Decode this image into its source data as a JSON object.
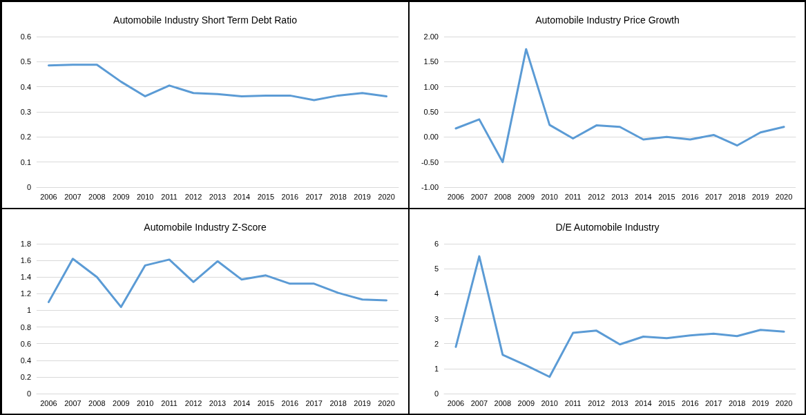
{
  "chart_data": [
    {
      "type": "line",
      "title": "Automobile Industry Short Term Debt Ratio",
      "categories": [
        "2006",
        "2007",
        "2008",
        "2009",
        "2010",
        "2011",
        "2012",
        "2013",
        "2014",
        "2015",
        "2016",
        "2017",
        "2018",
        "2019",
        "2020"
      ],
      "series": [
        {
          "color": "#5b9bd5",
          "values": [
            0.485,
            0.488,
            0.488,
            0.42,
            0.362,
            0.405,
            0.375,
            0.371,
            0.362,
            0.365,
            0.365,
            0.347,
            0.365,
            0.375,
            0.362
          ]
        }
      ],
      "ylim": [
        0,
        0.6
      ],
      "yticks": [
        0,
        0.1,
        0.2,
        0.3,
        0.4,
        0.5,
        0.6
      ],
      "grid": "y",
      "marker": "none",
      "line_style": "solid"
    },
    {
      "type": "line",
      "title": "Automobile Industry Price Growth",
      "categories": [
        "2006",
        "2007",
        "2008",
        "2009",
        "2010",
        "2011",
        "2012",
        "2013",
        "2014",
        "2015",
        "2016",
        "2017",
        "2018",
        "2019",
        "2020"
      ],
      "series": [
        {
          "color": "#5b9bd5",
          "values": [
            0.17,
            0.35,
            -0.5,
            1.75,
            0.24,
            -0.03,
            0.23,
            0.2,
            -0.05,
            0.0,
            -0.05,
            0.04,
            -0.17,
            0.09,
            0.2
          ]
        }
      ],
      "ylim": [
        -1,
        2
      ],
      "yticks": [
        {
          "value": -1,
          "label": "-1.00"
        },
        {
          "value": -0.5,
          "label": "-0.50"
        },
        {
          "value": 0,
          "label": "0.00"
        },
        {
          "value": 0.5,
          "label": "0.50"
        },
        {
          "value": 1,
          "label": "1.00"
        },
        {
          "value": 1.5,
          "label": "1.50"
        },
        {
          "value": 2,
          "label": "2.00"
        }
      ],
      "grid": "y",
      "marker": "none",
      "line_style": "solid"
    },
    {
      "type": "line",
      "title": "Automobile Industry Z-Score",
      "categories": [
        "2006",
        "2007",
        "2008",
        "2009",
        "2010",
        "2011",
        "2012",
        "2013",
        "2014",
        "2015",
        "2016",
        "2017",
        "2018",
        "2019",
        "2020"
      ],
      "series": [
        {
          "color": "#5b9bd5",
          "values": [
            1.1,
            1.62,
            1.4,
            1.04,
            1.54,
            1.61,
            1.34,
            1.59,
            1.37,
            1.42,
            1.32,
            1.32,
            1.21,
            1.13,
            1.12
          ]
        }
      ],
      "ylim": [
        0,
        1.8
      ],
      "yticks": [
        0,
        0.2,
        0.4,
        0.6,
        0.8,
        1,
        1.2,
        1.4,
        1.6,
        1.8
      ],
      "grid": "y",
      "marker": "none",
      "line_style": "solid"
    },
    {
      "type": "line",
      "title": "D/E Automobile Industry",
      "categories": [
        "2006",
        "2007",
        "2008",
        "2009",
        "2010",
        "2011",
        "2012",
        "2013",
        "2014",
        "2015",
        "2016",
        "2017",
        "2018",
        "2019",
        "2020"
      ],
      "series": [
        {
          "color": "#5b9bd5",
          "values": [
            1.87,
            5.5,
            1.55,
            1.13,
            0.67,
            2.43,
            2.52,
            1.97,
            2.28,
            2.22,
            2.33,
            2.4,
            2.3,
            2.55,
            2.48
          ]
        }
      ],
      "ylim": [
        0,
        6
      ],
      "yticks": [
        0,
        1,
        2,
        3,
        4,
        5,
        6
      ],
      "grid": "y",
      "marker": "none",
      "line_style": "solid"
    }
  ]
}
